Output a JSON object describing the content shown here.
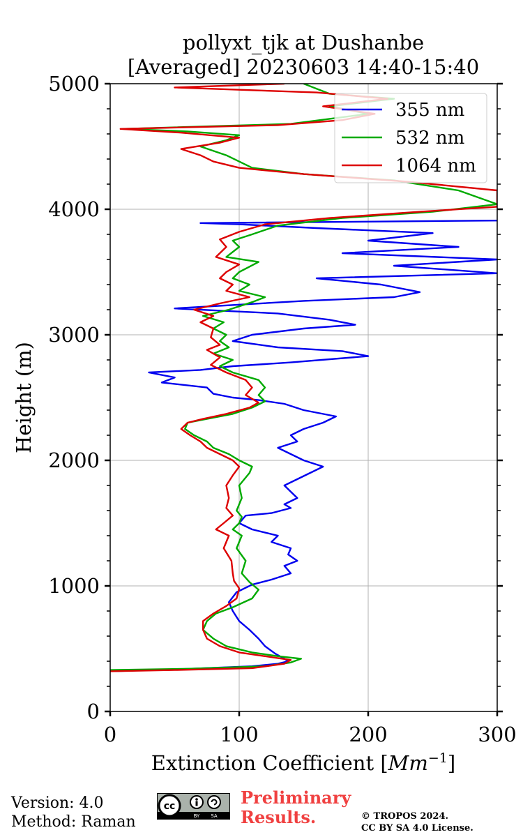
{
  "chart_data": {
    "type": "line",
    "title": "pollyxt_tjk at Dushanbe",
    "subtitle": "[Averaged] 20230603 14:40-15:40",
    "xlabel": "Extinction Coefficient [Mm⁻¹]",
    "ylabel": "Height (m)",
    "xlim": [
      0,
      300
    ],
    "ylim": [
      0,
      5000
    ],
    "x_ticks": [
      0,
      100,
      200,
      300
    ],
    "y_ticks": [
      0,
      1000,
      2000,
      3000,
      4000,
      5000
    ],
    "x_tick_labels": [
      "0",
      "100",
      "200",
      "300"
    ],
    "y_tick_labels": [
      "0",
      "1000",
      "2000",
      "3000",
      "4000",
      "5000"
    ],
    "grid": true,
    "legend_position": "top-right",
    "series": [
      {
        "name": "355 nm",
        "color": "#0000ee",
        "points": [
          [
            0,
            320
          ],
          [
            50,
            335
          ],
          [
            110,
            360
          ],
          [
            130,
            380
          ],
          [
            138,
            400
          ],
          [
            135,
            420
          ],
          [
            128,
            460
          ],
          [
            120,
            520
          ],
          [
            115,
            580
          ],
          [
            108,
            650
          ],
          [
            100,
            720
          ],
          [
            95,
            800
          ],
          [
            92,
            870
          ],
          [
            98,
            950
          ],
          [
            110,
            1010
          ],
          [
            125,
            1050
          ],
          [
            140,
            1100
          ],
          [
            135,
            1160
          ],
          [
            145,
            1200
          ],
          [
            138,
            1250
          ],
          [
            140,
            1300
          ],
          [
            125,
            1350
          ],
          [
            130,
            1400
          ],
          [
            110,
            1450
          ],
          [
            100,
            1500
          ],
          [
            105,
            1560
          ],
          [
            125,
            1580
          ],
          [
            140,
            1620
          ],
          [
            135,
            1650
          ],
          [
            145,
            1700
          ],
          [
            140,
            1750
          ],
          [
            135,
            1800
          ],
          [
            145,
            1850
          ],
          [
            155,
            1900
          ],
          [
            165,
            1950
          ],
          [
            150,
            2000
          ],
          [
            140,
            2050
          ],
          [
            130,
            2100
          ],
          [
            145,
            2150
          ],
          [
            140,
            2200
          ],
          [
            150,
            2250
          ],
          [
            165,
            2300
          ],
          [
            175,
            2350
          ],
          [
            150,
            2400
          ],
          [
            135,
            2450
          ],
          [
            115,
            2480
          ],
          [
            95,
            2500
          ],
          [
            80,
            2530
          ],
          [
            75,
            2580
          ],
          [
            40,
            2620
          ],
          [
            50,
            2660
          ],
          [
            30,
            2700
          ],
          [
            70,
            2720
          ],
          [
            95,
            2750
          ],
          [
            140,
            2780
          ],
          [
            200,
            2830
          ],
          [
            180,
            2870
          ],
          [
            130,
            2900
          ],
          [
            95,
            2950
          ],
          [
            110,
            3000
          ],
          [
            150,
            3050
          ],
          [
            190,
            3080
          ],
          [
            170,
            3120
          ],
          [
            130,
            3170
          ],
          [
            90,
            3190
          ],
          [
            50,
            3210
          ],
          [
            100,
            3240
          ],
          [
            150,
            3270
          ],
          [
            220,
            3300
          ],
          [
            240,
            3340
          ],
          [
            210,
            3400
          ],
          [
            160,
            3450
          ],
          [
            300,
            3490
          ],
          [
            220,
            3550
          ],
          [
            300,
            3600
          ],
          [
            180,
            3650
          ],
          [
            270,
            3700
          ],
          [
            200,
            3750
          ],
          [
            250,
            3810
          ],
          [
            160,
            3850
          ],
          [
            100,
            3880
          ],
          [
            70,
            3890
          ],
          [
            300,
            3910
          ]
        ]
      },
      {
        "name": "532 nm",
        "color": "#00aa00",
        "points": [
          [
            0,
            330
          ],
          [
            60,
            340
          ],
          [
            120,
            360
          ],
          [
            140,
            390
          ],
          [
            148,
            420
          ],
          [
            130,
            440
          ],
          [
            110,
            470
          ],
          [
            90,
            520
          ],
          [
            80,
            580
          ],
          [
            72,
            650
          ],
          [
            75,
            720
          ],
          [
            82,
            780
          ],
          [
            95,
            830
          ],
          [
            110,
            900
          ],
          [
            115,
            970
          ],
          [
            108,
            1030
          ],
          [
            102,
            1100
          ],
          [
            105,
            1200
          ],
          [
            98,
            1300
          ],
          [
            102,
            1400
          ],
          [
            95,
            1450
          ],
          [
            100,
            1500
          ],
          [
            102,
            1550
          ],
          [
            98,
            1600
          ],
          [
            102,
            1700
          ],
          [
            100,
            1800
          ],
          [
            108,
            1900
          ],
          [
            110,
            1950
          ],
          [
            100,
            2000
          ],
          [
            92,
            2050
          ],
          [
            80,
            2100
          ],
          [
            75,
            2150
          ],
          [
            65,
            2200
          ],
          [
            58,
            2250
          ],
          [
            60,
            2300
          ],
          [
            75,
            2330
          ],
          [
            95,
            2370
          ],
          [
            110,
            2420
          ],
          [
            120,
            2470
          ],
          [
            115,
            2520
          ],
          [
            120,
            2580
          ],
          [
            115,
            2640
          ],
          [
            95,
            2700
          ],
          [
            85,
            2750
          ],
          [
            95,
            2800
          ],
          [
            80,
            2850
          ],
          [
            92,
            2900
          ],
          [
            85,
            2950
          ],
          [
            90,
            3000
          ],
          [
            80,
            3050
          ],
          [
            88,
            3100
          ],
          [
            72,
            3150
          ],
          [
            92,
            3200
          ],
          [
            110,
            3260
          ],
          [
            120,
            3300
          ],
          [
            100,
            3350
          ],
          [
            108,
            3400
          ],
          [
            95,
            3450
          ],
          [
            100,
            3500
          ],
          [
            115,
            3580
          ],
          [
            90,
            3620
          ],
          [
            100,
            3700
          ],
          [
            95,
            3750
          ],
          [
            110,
            3800
          ],
          [
            130,
            3870
          ],
          [
            180,
            3930
          ],
          [
            250,
            3980
          ],
          [
            300,
            4040
          ],
          [
            270,
            4150
          ],
          [
            220,
            4230
          ],
          [
            150,
            4280
          ],
          [
            110,
            4330
          ],
          [
            100,
            4380
          ],
          [
            90,
            4430
          ],
          [
            70,
            4500
          ],
          [
            90,
            4550
          ],
          [
            100,
            4590
          ],
          [
            60,
            4620
          ],
          [
            10,
            4640
          ],
          [
            140,
            4680
          ],
          [
            170,
            4720
          ],
          [
            200,
            4760
          ],
          [
            170,
            4820
          ],
          [
            220,
            4880
          ],
          [
            170,
            4920
          ],
          [
            160,
            4960
          ],
          [
            150,
            5000
          ]
        ]
      },
      {
        "name": "1064 nm",
        "color": "#dd0000",
        "points": [
          [
            0,
            320
          ],
          [
            50,
            330
          ],
          [
            110,
            345
          ],
          [
            135,
            380
          ],
          [
            140,
            410
          ],
          [
            120,
            440
          ],
          [
            100,
            470
          ],
          [
            85,
            520
          ],
          [
            75,
            580
          ],
          [
            72,
            650
          ],
          [
            72,
            720
          ],
          [
            80,
            780
          ],
          [
            90,
            840
          ],
          [
            98,
            900
          ],
          [
            100,
            980
          ],
          [
            96,
            1040
          ],
          [
            95,
            1100
          ],
          [
            94,
            1200
          ],
          [
            88,
            1300
          ],
          [
            92,
            1400
          ],
          [
            82,
            1450
          ],
          [
            88,
            1500
          ],
          [
            95,
            1560
          ],
          [
            90,
            1620
          ],
          [
            92,
            1700
          ],
          [
            90,
            1800
          ],
          [
            95,
            1880
          ],
          [
            100,
            1950
          ],
          [
            95,
            2000
          ],
          [
            85,
            2050
          ],
          [
            75,
            2100
          ],
          [
            70,
            2150
          ],
          [
            62,
            2200
          ],
          [
            55,
            2250
          ],
          [
            60,
            2300
          ],
          [
            72,
            2330
          ],
          [
            90,
            2370
          ],
          [
            108,
            2420
          ],
          [
            115,
            2460
          ],
          [
            105,
            2520
          ],
          [
            110,
            2580
          ],
          [
            105,
            2640
          ],
          [
            90,
            2700
          ],
          [
            78,
            2760
          ],
          [
            85,
            2820
          ],
          [
            75,
            2880
          ],
          [
            85,
            2920
          ],
          [
            78,
            2980
          ],
          [
            80,
            3050
          ],
          [
            70,
            3100
          ],
          [
            80,
            3150
          ],
          [
            65,
            3200
          ],
          [
            85,
            3250
          ],
          [
            108,
            3300
          ],
          [
            90,
            3350
          ],
          [
            95,
            3400
          ],
          [
            85,
            3450
          ],
          [
            90,
            3500
          ],
          [
            100,
            3560
          ],
          [
            82,
            3620
          ],
          [
            90,
            3700
          ],
          [
            85,
            3760
          ],
          [
            100,
            3820
          ],
          [
            120,
            3880
          ],
          [
            170,
            3930
          ],
          [
            240,
            3980
          ],
          [
            300,
            4020
          ],
          [
            300,
            4150
          ],
          [
            230,
            4220
          ],
          [
            150,
            4280
          ],
          [
            100,
            4330
          ],
          [
            80,
            4380
          ],
          [
            70,
            4430
          ],
          [
            55,
            4480
          ],
          [
            85,
            4530
          ],
          [
            100,
            4570
          ],
          [
            55,
            4610
          ],
          [
            8,
            4640
          ],
          [
            130,
            4670
          ],
          [
            180,
            4710
          ],
          [
            205,
            4760
          ],
          [
            165,
            4820
          ],
          [
            215,
            4880
          ],
          [
            160,
            4930
          ],
          [
            50,
            4970
          ],
          [
            135,
            5000
          ]
        ]
      }
    ]
  },
  "footer": {
    "version": "Version: 4.0",
    "method": "Method: Raman",
    "preliminary_line1": "Preliminary",
    "preliminary_line2": "Results.",
    "copyright_line1": "© TROPOS 2024.",
    "copyright_line2": "CC BY SA 4.0 License.",
    "license_logo": "cc-by-sa-logo"
  }
}
